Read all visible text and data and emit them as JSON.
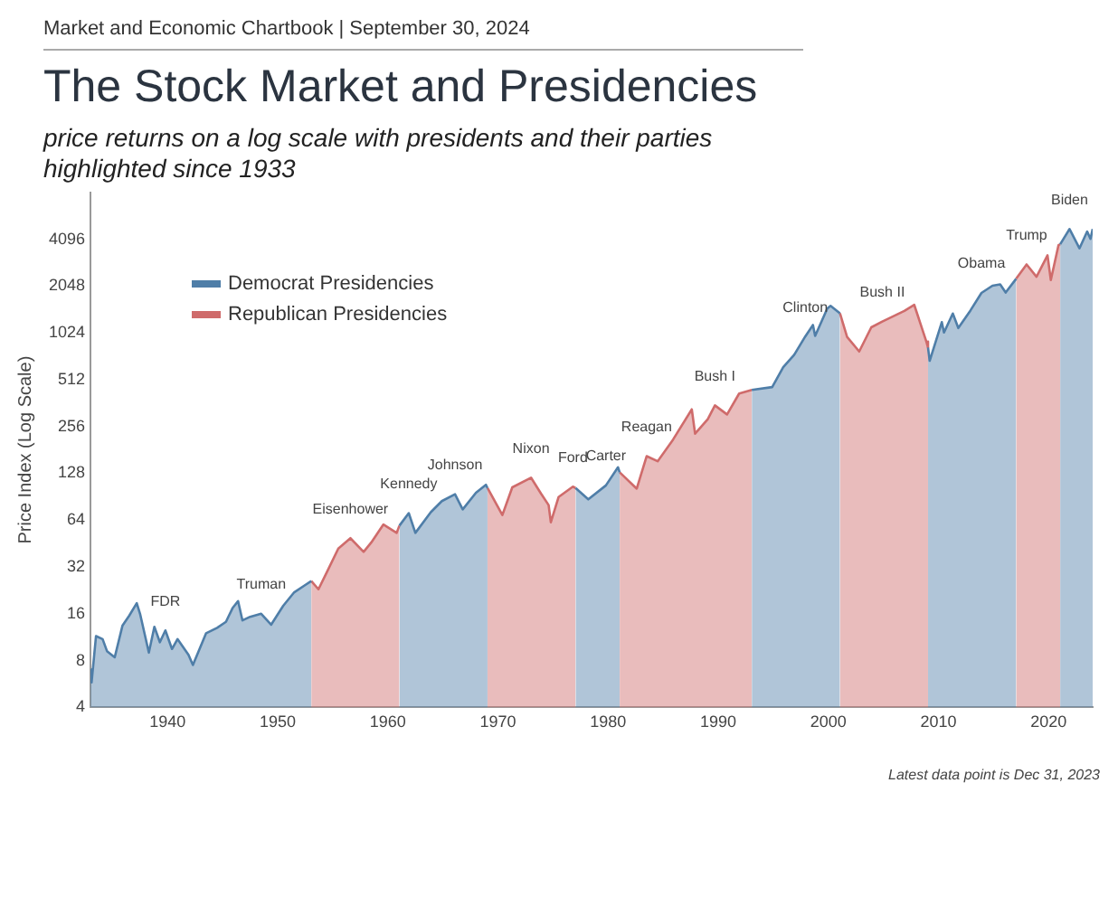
{
  "chart_data": {
    "type": "area",
    "title": "The Stock Market and Presidencies",
    "subtitle": "price returns on a log scale with presidents and their parties highlighted since 1933",
    "ylabel": "Price Index (Log Scale)",
    "log": "y",
    "grid": false,
    "legend": "top left",
    "marker": "none",
    "line_style": "solid",
    "xlim": [
      1933,
      2024
    ],
    "xticks": [
      1940,
      1950,
      1960,
      1970,
      1980,
      1990,
      2000,
      2010,
      2020
    ],
    "ylim": [
      4,
      8192
    ],
    "yticks": [
      4,
      8,
      16,
      32,
      64,
      128,
      256,
      512,
      1024,
      2048,
      4096
    ],
    "series": [
      {
        "name": "Democrat Presidencies",
        "color": "#4f7ea8",
        "x": [
          1933.0,
          1933.1,
          1933.5,
          1934.1,
          1934.5,
          1935.2,
          1935.9,
          1936.5,
          1937.2,
          1937.5,
          1938.3,
          1938.8,
          1939.3,
          1939.8,
          1940.4,
          1940.9,
          1941.9,
          1942.3,
          1943.5,
          1944.5,
          1945.3,
          1945.9,
          1946.4,
          1946.8,
          1947.5,
          1948.5,
          1949.4,
          1950.5,
          1951.5,
          1952.5,
          1953.05,
          1957,
          1961.05,
          1961.9,
          1962.5,
          1963.9,
          1964.9,
          1966.1,
          1966.8,
          1968.0,
          1968.9,
          1969.05,
          1973,
          1977.05,
          1978.2,
          1979.8,
          1980.9,
          1981.05,
          1987,
          1993.05,
          1994.9,
          1995.9,
          1996.9,
          1997.9,
          1998.6,
          1998.8,
          1999.9,
          2000.2,
          2001.05,
          2005,
          2009.05,
          2009.2,
          2010.3,
          2010.5,
          2011.3,
          2011.8,
          2012.9,
          2013.9,
          2014.9,
          2015.6,
          2016.1,
          2017.05,
          2019,
          2021.05,
          2021.9,
          2022.8,
          2023.5,
          2023.8,
          2024.0
        ],
        "values": [
          7,
          5.8,
          11.5,
          11,
          9.2,
          8.4,
          13.4,
          15.5,
          18.7,
          16,
          9,
          13.2,
          10.5,
          12.5,
          9.5,
          11,
          8.7,
          7.5,
          12,
          13,
          14.2,
          17.4,
          19.3,
          14.5,
          15.3,
          16,
          13.6,
          18,
          22,
          24.5,
          26,
          null,
          59,
          71,
          53,
          72,
          84.8,
          94,
          75,
          96,
          108,
          103,
          null,
          103,
          87,
          107,
          140,
          130,
          null,
          440,
          459,
          616,
          741,
          970,
          1150,
          980,
          1469,
          1527,
          1370,
          null,
          825,
          677,
          1200,
          1030,
          1363,
          1100,
          1426,
          1848,
          2059,
          2100,
          1860,
          2280,
          null,
          3800,
          4766,
          3577,
          4590,
          4117,
          4770
        ]
      },
      {
        "name": "Republican Presidencies",
        "color": "#cf6b6b",
        "x": [
          1953.05,
          1953.7,
          1954.5,
          1955.5,
          1956.6,
          1957.8,
          1958.5,
          1959.6,
          1960.8,
          1961.05,
          1965,
          1969.05,
          1970.4,
          1971.3,
          1973.0,
          1973.9,
          1974.6,
          1974.8,
          1975.5,
          1976.8,
          1977.05,
          1979,
          1981.05,
          1982.6,
          1983.5,
          1984.5,
          1985.9,
          1987.6,
          1987.9,
          1989.05,
          1989.7,
          1990.8,
          1991.9,
          1993.05,
          1997,
          2001.05,
          2001.7,
          2002.8,
          2003.9,
          2004.9,
          2006.9,
          2007.8,
          2008.9,
          2009.05,
          2013,
          2017.05,
          2018.0,
          2018.9,
          2019.9,
          2020.2,
          2020.9,
          2021.05
        ],
        "values": [
          26,
          23,
          30,
          42,
          49,
          40,
          46,
          60,
          53,
          59,
          null,
          103,
          69,
          104,
          120,
          95,
          80,
          62,
          90,
          105,
          103,
          null,
          130,
          102,
          165,
          153,
          211,
          330,
          230,
          285,
          350,
          306,
          417,
          440,
          null,
          1370,
          965,
          777,
          1112,
          1212,
          1418,
          1549,
          900,
          825,
          null,
          2280,
          2820,
          2350,
          3231,
          2237,
          3756,
          3800
        ]
      }
    ],
    "annotations": [
      "Market and Economic Chartbook | September 30, 2024",
      "Latest data point is Dec 31, 2023",
      {
        "text": "FDR",
        "x": 1939.8,
        "y": 12.5
      },
      {
        "text": "Truman",
        "x": 1948.5,
        "y": 16
      },
      {
        "text": "Eisenhower",
        "x": 1956.6,
        "y": 49
      },
      {
        "text": "Kennedy",
        "x": 1961.9,
        "y": 71
      },
      {
        "text": "Johnson",
        "x": 1966.1,
        "y": 94
      },
      {
        "text": "Nixon",
        "x": 1973.0,
        "y": 120
      },
      {
        "text": "Ford",
        "x": 1976.8,
        "y": 105
      },
      {
        "text": "Carter",
        "x": 1979.8,
        "y": 107
      },
      {
        "text": "Reagan",
        "x": 1983.5,
        "y": 165
      },
      {
        "text": "Bush I",
        "x": 1989.7,
        "y": 350
      },
      {
        "text": "Clinton",
        "x": 1997.9,
        "y": 970
      },
      {
        "text": "Bush II",
        "x": 2004.9,
        "y": 1212
      },
      {
        "text": "Obama",
        "x": 2013.9,
        "y": 1848
      },
      {
        "text": "Trump",
        "x": 2018.0,
        "y": 2820
      },
      {
        "text": "Biden",
        "x": 2021.9,
        "y": 4766
      }
    ]
  }
}
